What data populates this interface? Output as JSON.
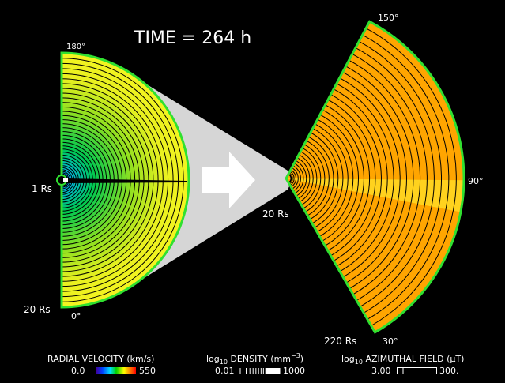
{
  "title": "TIME = 264 h",
  "left_panel": {
    "angle_top": "180°",
    "angle_bottom": "0°",
    "inner_radius": "1 Rs",
    "outer_radius": "20 Rs"
  },
  "right_panel": {
    "angle_top": "150°",
    "angle_right": "90°",
    "angle_bottom": "30°",
    "inner_radius": "20 Rs",
    "outer_radius": "220 Rs"
  },
  "legends": [
    {
      "label_parts": [
        "RADIAL VELOCITY (km/s)"
      ],
      "min": "0.0",
      "max": "550"
    },
    {
      "label_parts": [
        "log",
        "10",
        " DENSITY (mm",
        "−3",
        ")"
      ],
      "min": "0.01",
      "max": "1000"
    },
    {
      "label_parts": [
        "log",
        "10",
        " AZIMUTHAL FIELD (μT)"
      ],
      "min": "3.00",
      "max": "300."
    }
  ]
}
